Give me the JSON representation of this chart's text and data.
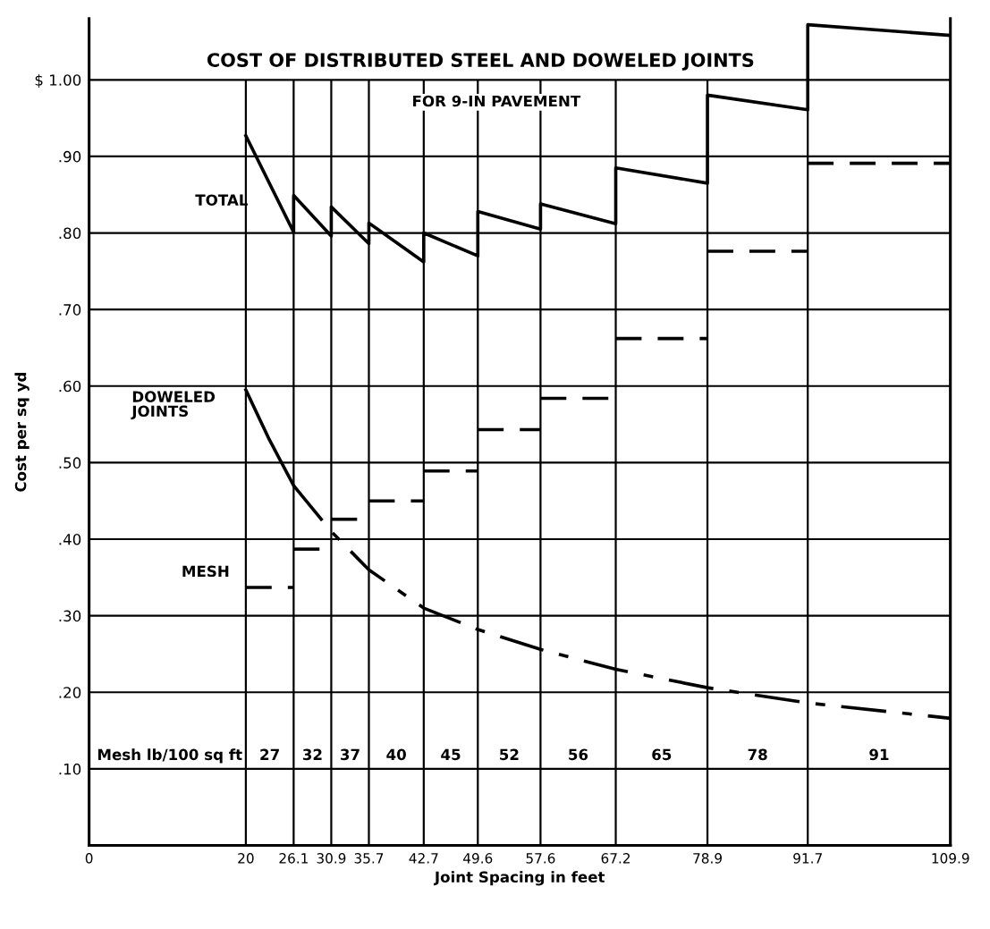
{
  "chart_data": {
    "type": "line",
    "title": "COST OF DISTRIBUTED STEEL AND DOWELED JOINTS",
    "subtitle": "FOR 9-IN PAVEMENT",
    "xlabel": "Joint Spacing in feet",
    "ylabel": "Cost per sq yd",
    "series": [
      {
        "name": "TOTAL",
        "color": "#000000",
        "line_style": "solid",
        "x": [
          20,
          26.1,
          26.1,
          30.9,
          30.9,
          35.7,
          35.7,
          42.7,
          42.7,
          49.6,
          49.6,
          57.6,
          57.6,
          67.2,
          67.2,
          78.9,
          78.9,
          91.7,
          91.7,
          109.9
        ],
        "values": [
          0.927,
          0.801,
          0.849,
          0.796,
          0.834,
          0.786,
          0.813,
          0.762,
          0.8,
          0.77,
          0.828,
          0.805,
          0.838,
          0.812,
          0.885,
          0.865,
          0.98,
          0.961,
          1.072,
          1.058
        ]
      },
      {
        "name": "DOWELED JOINTS",
        "color": "#000000",
        "line_style": "solid",
        "x": [
          20,
          23,
          26.1
        ],
        "values": [
          0.595,
          0.53,
          0.47
        ]
      },
      {
        "color": "#000000",
        "line_style": "dashdot",
        "x": [
          26.1,
          30.9,
          35.7,
          42.7,
          49.6,
          57.6,
          67.2,
          78.9,
          91.7,
          109.9
        ],
        "values": [
          0.47,
          0.41,
          0.36,
          0.31,
          0.282,
          0.256,
          0.23,
          0.206,
          0.186,
          0.166
        ]
      },
      {
        "name": "MESH",
        "color": "#000000",
        "line_style": "dashed",
        "x": [
          20,
          26.1
        ],
        "values": [
          0.337,
          0.337
        ]
      },
      {
        "color": "#000000",
        "line_style": "dashed",
        "x": [
          26.1,
          30.9
        ],
        "values": [
          0.387,
          0.387
        ]
      },
      {
        "color": "#000000",
        "line_style": "dashed",
        "x": [
          30.9,
          35.7
        ],
        "values": [
          0.426,
          0.426
        ]
      },
      {
        "color": "#000000",
        "line_style": "dashed",
        "x": [
          35.7,
          42.7
        ],
        "values": [
          0.45,
          0.45
        ]
      },
      {
        "color": "#000000",
        "line_style": "dashed",
        "x": [
          42.7,
          49.6
        ],
        "values": [
          0.489,
          0.489
        ]
      },
      {
        "color": "#000000",
        "line_style": "dashed",
        "x": [
          49.6,
          57.6
        ],
        "values": [
          0.543,
          0.543
        ]
      },
      {
        "color": "#000000",
        "line_style": "dashed",
        "x": [
          57.6,
          67.2
        ],
        "values": [
          0.584,
          0.584
        ]
      },
      {
        "color": "#000000",
        "line_style": "dashed",
        "x": [
          67.2,
          78.9
        ],
        "values": [
          0.662,
          0.662
        ]
      },
      {
        "color": "#000000",
        "line_style": "dashed",
        "x": [
          78.9,
          91.7
        ],
        "values": [
          0.776,
          0.776
        ]
      },
      {
        "color": "#000000",
        "line_style": "dashed",
        "x": [
          91.7,
          109.9
        ],
        "values": [
          0.891,
          0.891
        ]
      }
    ],
    "xlim": [
      0,
      109.9
    ],
    "ylim": [
      0,
      1.08
    ],
    "xticks": [
      0,
      20,
      26.1,
      30.9,
      35.7,
      42.7,
      49.6,
      57.6,
      67.2,
      78.9,
      91.7,
      109.9
    ],
    "yticks": [
      {
        "value": 0.1,
        "label": ".10"
      },
      {
        "value": 0.2,
        "label": ".20"
      },
      {
        "value": 0.3,
        "label": ".30"
      },
      {
        "value": 0.4,
        "label": ".40"
      },
      {
        "value": 0.5,
        "label": ".50"
      },
      {
        "value": 0.6,
        "label": ".60"
      },
      {
        "value": 0.7,
        "label": ".70"
      },
      {
        "value": 0.8,
        "label": ".80"
      },
      {
        "value": 0.9,
        "label": ".90"
      },
      {
        "value": 1.0,
        "label": "$ 1.00"
      }
    ],
    "annotations": [
      "Mesh lb/100 sq ft",
      {
        "text": "27",
        "x": 23.05,
        "y": 0.117
      },
      {
        "text": "32",
        "x": 28.5,
        "y": 0.117
      },
      {
        "text": "37",
        "x": 33.3,
        "y": 0.117
      },
      {
        "text": "40",
        "x": 39.2,
        "y": 0.117
      },
      {
        "text": "45",
        "x": 46.15,
        "y": 0.117
      },
      {
        "text": "52",
        "x": 53.6,
        "y": 0.117
      },
      {
        "text": "56",
        "x": 62.4,
        "y": 0.117
      },
      {
        "text": "65",
        "x": 73.05,
        "y": 0.117
      },
      {
        "text": "78",
        "x": 85.3,
        "y": 0.117
      },
      {
        "text": "91",
        "x": 100.8,
        "y": 0.117
      }
    ],
    "grid": true,
    "legend": false,
    "marker": "none"
  }
}
